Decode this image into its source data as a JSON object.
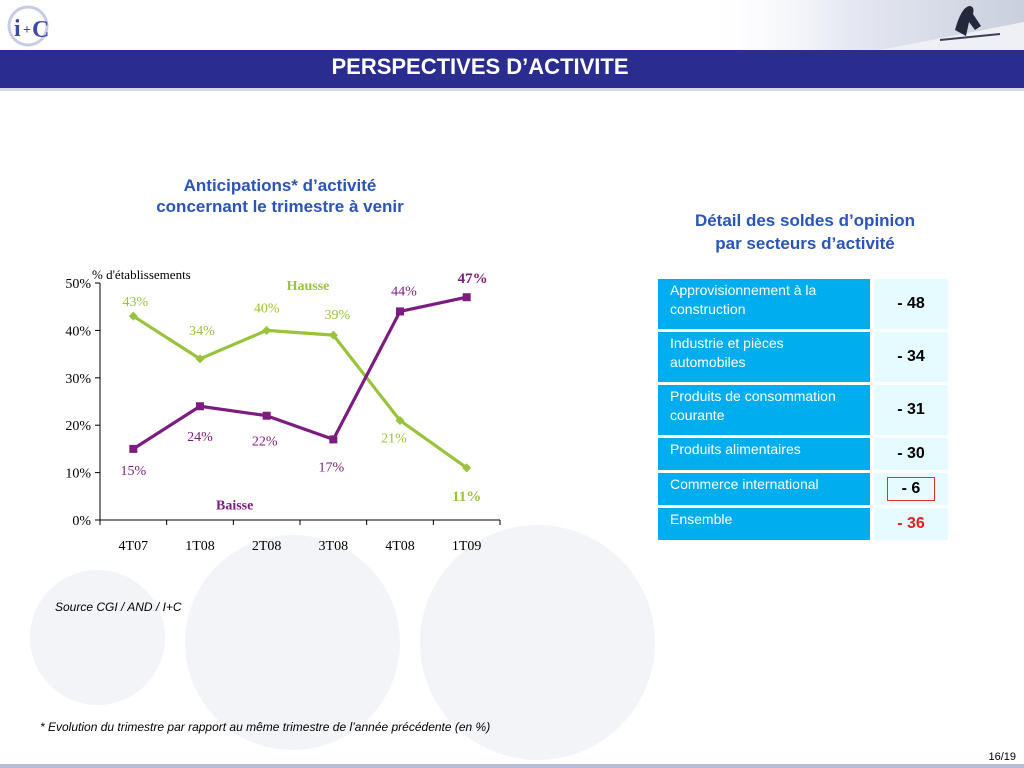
{
  "header": {
    "title": "PERSPECTIVES D’ACTIVITE",
    "logo_text": "i+C"
  },
  "chart": {
    "title_line1": "Anticipations* d’activité",
    "title_line2": "concernant le trimestre à venir"
  },
  "chart_data": {
    "type": "line",
    "categories": [
      "4T07",
      "1T08",
      "2T08",
      "3T08",
      "4T08",
      "1T09"
    ],
    "ylabel": "% d'établissements",
    "ylim": [
      0,
      50
    ],
    "yticks": [
      "0%",
      "10%",
      "20%",
      "30%",
      "40%",
      "50%"
    ],
    "grid": false,
    "series": [
      {
        "name": "Hausse",
        "color": "#9ac23c",
        "values": [
          43,
          34,
          40,
          39,
          21,
          11
        ],
        "labels": [
          "43%",
          "34%",
          "40%",
          "39%",
          "21%",
          "11%"
        ]
      },
      {
        "name": "Baisse",
        "color": "#7b1d7e",
        "values": [
          15,
          24,
          22,
          17,
          44,
          47
        ],
        "labels": [
          "15%",
          "24%",
          "22%",
          "17%",
          "44%",
          "47%"
        ]
      }
    ]
  },
  "table": {
    "title_line1": "Détail des soldes d’opinion",
    "title_line2": "par secteurs d’activité",
    "rows": [
      {
        "label": "Approvisionnement à la construction",
        "value": "- 48"
      },
      {
        "label": "Industrie et pièces automobiles",
        "value": "- 34"
      },
      {
        "label": "Produits de consommation courante",
        "value": "- 31"
      },
      {
        "label": "Produits alimentaires",
        "value": "- 30"
      },
      {
        "label": "Commerce international",
        "value": "- 6"
      },
      {
        "label": "Ensemble",
        "value": "- 36"
      }
    ]
  },
  "source": "Source CGI / AND / I+C",
  "footnote": "* Evolution du trimestre par rapport au même trimestre de l’année précédente (en %)",
  "page_number": "16/19"
}
